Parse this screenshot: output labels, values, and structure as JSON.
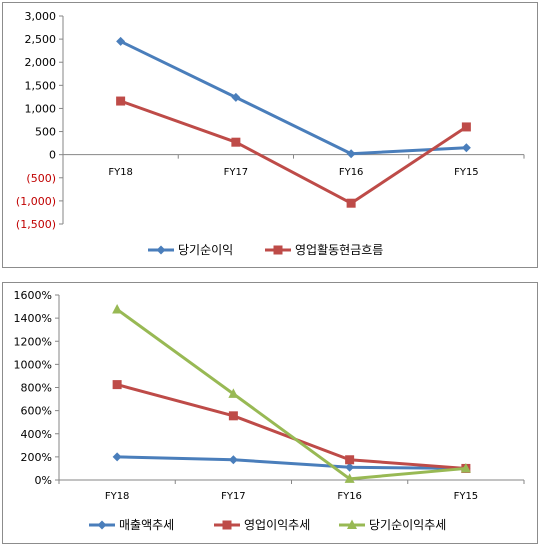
{
  "chart_data": [
    {
      "type": "line",
      "categories": [
        "FY18",
        "FY17",
        "FY16",
        "FY15"
      ],
      "ylim": [
        -1500,
        3000
      ],
      "yticks": [
        3000,
        2500,
        2000,
        1500,
        1000,
        500,
        0,
        -500,
        -1000,
        -1500
      ],
      "ytick_labels": [
        "3,000",
        "2,500",
        "2,000",
        "1,500",
        "1,000",
        "500",
        "0",
        "(500)",
        "(1,000)",
        "(1,500)"
      ],
      "negative_label_color": "#c00000",
      "grid": false,
      "legend_position": "bottom",
      "series": [
        {
          "name": "당기순이익",
          "values": [
            2450,
            1240,
            20,
            150
          ],
          "color": "#4a7ebb",
          "marker": "diamond"
        },
        {
          "name": "영업활동현금흐름",
          "values": [
            1160,
            270,
            -1050,
            600
          ],
          "color": "#be4b48",
          "marker": "square"
        }
      ]
    },
    {
      "type": "line",
      "categories": [
        "FY18",
        "FY17",
        "FY16",
        "FY15"
      ],
      "ylim": [
        0,
        1600
      ],
      "yticks": [
        1600,
        1400,
        1200,
        1000,
        800,
        600,
        400,
        200,
        0
      ],
      "ytick_labels": [
        "1600%",
        "1400%",
        "1200%",
        "1000%",
        "800%",
        "600%",
        "400%",
        "200%",
        "0%"
      ],
      "grid": false,
      "legend_position": "bottom",
      "series": [
        {
          "name": "매출액추세",
          "values": [
            200,
            175,
            110,
            100
          ],
          "color": "#4a7ebb",
          "marker": "diamond"
        },
        {
          "name": "영업이익추세",
          "values": [
            825,
            555,
            175,
            100
          ],
          "color": "#be4b48",
          "marker": "square"
        },
        {
          "name": "당기순이익추세",
          "values": [
            1475,
            745,
            10,
            100
          ],
          "color": "#98b954",
          "marker": "triangle"
        }
      ]
    }
  ]
}
